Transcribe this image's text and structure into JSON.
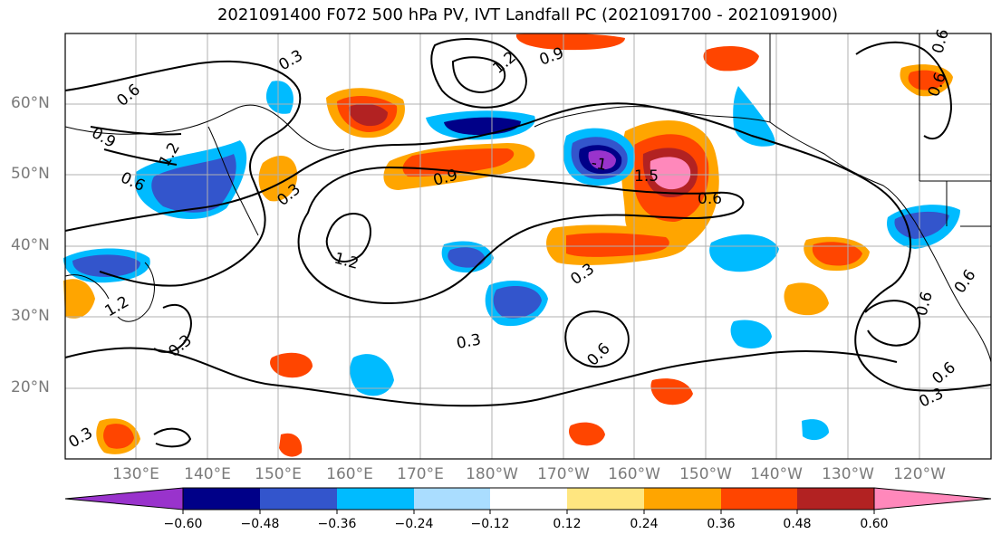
{
  "title": "2021091400 F072 500 hPa PV, IVT Landfall PC (2021091700 - 2021091900)",
  "lat_labels": [
    "60°N",
    "50°N",
    "40°N",
    "30°N",
    "20°N"
  ],
  "lon_labels": [
    "130°E",
    "140°E",
    "150°E",
    "160°E",
    "170°E",
    "180°W",
    "170°W",
    "160°W",
    "150°W",
    "140°W",
    "130°W",
    "120°W"
  ],
  "contour_labels": [
    "0.3",
    "0.6",
    "0.9",
    "1.2",
    "0.6",
    "0.9",
    "1.2",
    "1.5",
    "0.6",
    "1.2",
    "0.9",
    "0.3",
    "0.3",
    "0.6",
    "0.3",
    "0.6",
    "0.6",
    "0.3",
    "-1",
    "0.6",
    "0.3",
    "1.2",
    "0.6",
    "0.3",
    "0.6"
  ],
  "colorbar": {
    "ticks": [
      "−0.60",
      "−0.48",
      "−0.36",
      "−0.24",
      "−0.12",
      "0.12",
      "0.24",
      "0.36",
      "0.48",
      "0.60"
    ],
    "colors": [
      "#9933cc",
      "#000088",
      "#3355cc",
      "#00bbff",
      "#aaddff",
      "#ffffff",
      "#ffe680",
      "#ffa500",
      "#ff4500",
      "#b22222",
      "#ff88bb"
    ]
  },
  "extent": {
    "lon_west": 120,
    "lon_east": 250,
    "lat_south": 10,
    "lat_north": 70
  }
}
